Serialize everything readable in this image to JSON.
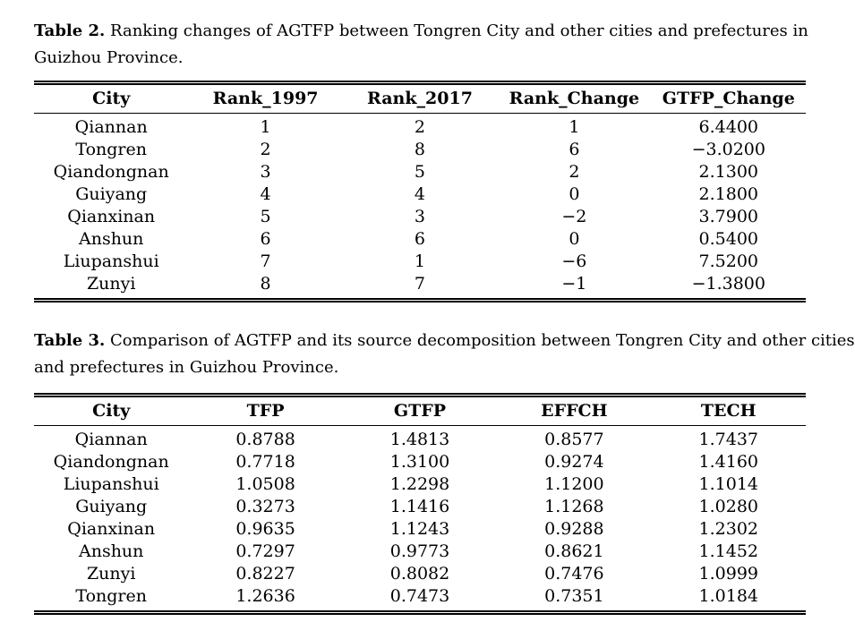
{
  "page": {
    "background": "#ffffff",
    "text_color": "#000000"
  },
  "table2": {
    "caption_label": "Table 2.",
    "caption_line1": "Ranking changes of AGTFP between Tongren City and other cities and prefectures in",
    "caption_line2": "Guizhou Province.",
    "headers": [
      "City",
      "Rank_1997",
      "Rank_2017",
      "Rank_Change",
      "GTFP_Change"
    ],
    "rows": [
      [
        "Qiannan",
        "1",
        "2",
        "1",
        "6.4400"
      ],
      [
        "Tongren",
        "2",
        "8",
        "6",
        "−3.0200"
      ],
      [
        "Qiandongnan",
        "3",
        "5",
        "2",
        "2.1300"
      ],
      [
        "Guiyang",
        "4",
        "4",
        "0",
        "2.1800"
      ],
      [
        "Qianxinan",
        "5",
        "3",
        "−2",
        "3.7900"
      ],
      [
        "Anshun",
        "6",
        "6",
        "0",
        "0.5400"
      ],
      [
        "Liupanshui",
        "7",
        "1",
        "−6",
        "7.5200"
      ],
      [
        "Zunyi",
        "8",
        "7",
        "−1",
        "−1.3800"
      ]
    ]
  },
  "table3": {
    "caption_label": "Table 3.",
    "caption_line1": "Comparison of AGTFP and its source decomposition between Tongren City and other cities",
    "caption_line2": "and prefectures in Guizhou Province.",
    "headers": [
      "City",
      "TFP",
      "GTFP",
      "EFFCH",
      "TECH"
    ],
    "rows": [
      [
        "Qiannan",
        "0.8788",
        "1.4813",
        "0.8577",
        "1.7437"
      ],
      [
        "Qiandongnan",
        "0.7718",
        "1.3100",
        "0.9274",
        "1.4160"
      ],
      [
        "Liupanshui",
        "1.0508",
        "1.2298",
        "1.1200",
        "1.1014"
      ],
      [
        "Guiyang",
        "0.3273",
        "1.1416",
        "1.1268",
        "1.0280"
      ],
      [
        "Qianxinan",
        "0.9635",
        "1.1243",
        "0.9288",
        "1.2302"
      ],
      [
        "Anshun",
        "0.7297",
        "0.9773",
        "0.8621",
        "1.1452"
      ],
      [
        "Zunyi",
        "0.8227",
        "0.8082",
        "0.7476",
        "1.0999"
      ],
      [
        "Tongren",
        "1.2636",
        "0.7473",
        "0.7351",
        "1.0184"
      ]
    ]
  }
}
